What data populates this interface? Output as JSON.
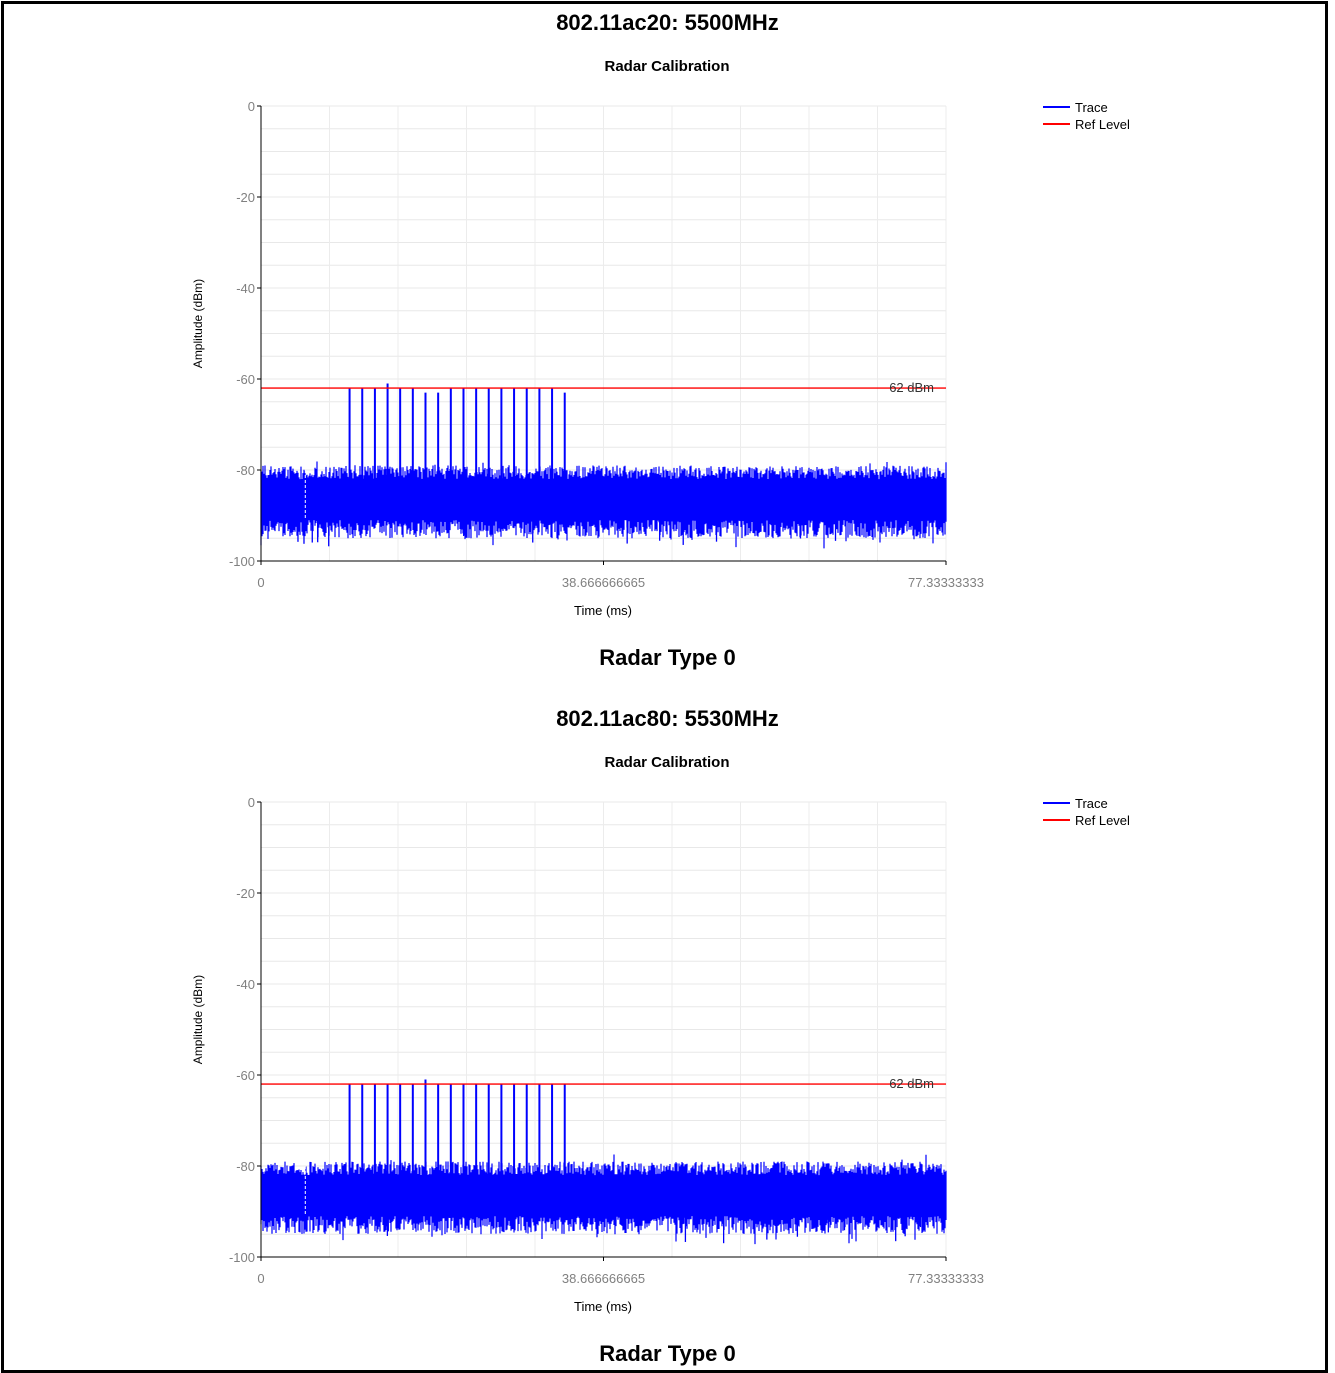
{
  "sections": [
    {
      "heading": "802.11ac20: 5500MHz",
      "caption": "Radar Type 0",
      "chart_data": {
        "type": "line",
        "title": "Radar Calibration",
        "xlabel": "Time (ms)",
        "ylabel": "Amplitude (dBm)",
        "xlim": [
          0,
          77.33333333
        ],
        "ylim": [
          -100,
          0
        ],
        "x_ticks": [
          "0",
          "38.666666665",
          "77.33333333"
        ],
        "y_ticks": [
          "0",
          "-20",
          "-40",
          "-60",
          "-80",
          "-100"
        ],
        "grid": true,
        "legend_position": "top-right",
        "ref_level_label": "62 dBm",
        "series": [
          {
            "name": "Trace",
            "color": "#0000ff",
            "noise_floor_range_dbm": [
              -93,
              -80
            ],
            "pulse_times_ms": [
              10.0,
              11.43,
              12.86,
              14.29,
              15.71,
              17.14,
              18.57,
              20.0,
              21.43,
              22.86,
              24.29,
              25.71,
              27.14,
              28.57,
              30.0,
              31.43,
              32.86,
              34.29
            ],
            "pulse_peaks_dbm": [
              -62,
              -62,
              -62,
              -61,
              -62,
              -62,
              -63,
              -63,
              -62,
              -62,
              -62,
              -62,
              -62,
              -62,
              -62,
              -62,
              -62,
              -63
            ]
          },
          {
            "name": "Ref Level",
            "color": "#ff0000",
            "value": -62
          }
        ]
      }
    },
    {
      "heading": "802.11ac80: 5530MHz",
      "caption": "Radar Type 0",
      "chart_data": {
        "type": "line",
        "title": "Radar Calibration",
        "xlabel": "Time (ms)",
        "ylabel": "Amplitude (dBm)",
        "xlim": [
          0,
          77.33333333
        ],
        "ylim": [
          -100,
          0
        ],
        "x_ticks": [
          "0",
          "38.666666665",
          "77.33333333"
        ],
        "y_ticks": [
          "0",
          "-20",
          "-40",
          "-60",
          "-80",
          "-100"
        ],
        "grid": true,
        "legend_position": "top-right",
        "ref_level_label": "62 dBm",
        "series": [
          {
            "name": "Trace",
            "color": "#0000ff",
            "noise_floor_range_dbm": [
              -93,
              -80
            ],
            "pulse_times_ms": [
              10.0,
              11.43,
              12.86,
              14.29,
              15.71,
              17.14,
              18.57,
              20.0,
              21.43,
              22.86,
              24.29,
              25.71,
              27.14,
              28.57,
              30.0,
              31.43,
              32.86,
              34.29
            ],
            "pulse_peaks_dbm": [
              -62,
              -62,
              -62,
              -62,
              -62,
              -62,
              -61,
              -62,
              -62,
              -62,
              -62,
              -62,
              -62,
              -62,
              -62,
              -62,
              -62,
              -62
            ]
          },
          {
            "name": "Ref Level",
            "color": "#ff0000",
            "value": -62
          }
        ]
      }
    }
  ]
}
